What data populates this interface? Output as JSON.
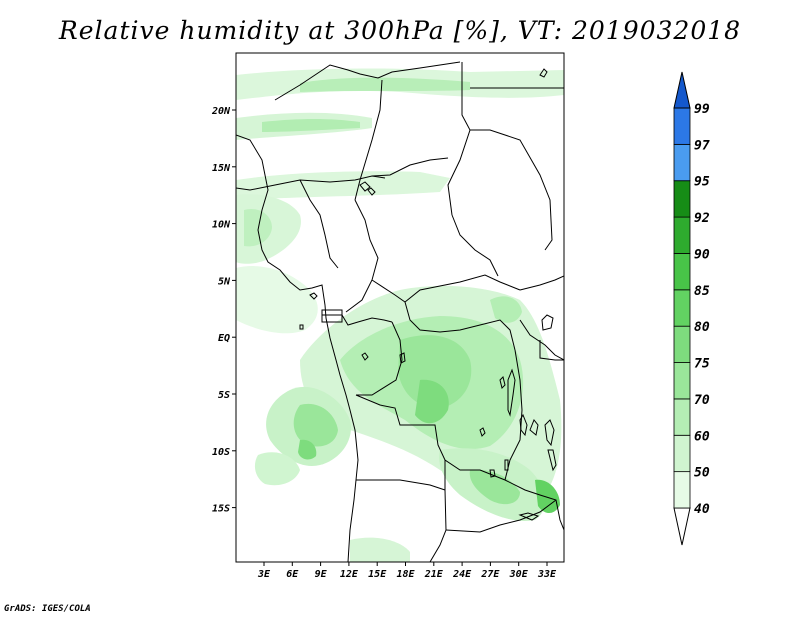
{
  "title": "Relative humidity at 300hPa [%], VT: 2019032018",
  "credit": "GrADS: IGES/COLA",
  "axes": {
    "lon_ticks": [
      "3E",
      "6E",
      "9E",
      "12E",
      "15E",
      "18E",
      "21E",
      "24E",
      "27E",
      "30E",
      "33E"
    ],
    "lat_ticks": [
      "20N",
      "15N",
      "10N",
      "5N",
      "EQ",
      "5S",
      "10S",
      "15S"
    ]
  },
  "colorbar": {
    "labels": [
      "40",
      "50",
      "60",
      "70",
      "75",
      "80",
      "85",
      "90",
      "92",
      "95",
      "97",
      "99"
    ],
    "colors": [
      "#ffffff",
      "#e6fbe6",
      "#d0f5d0",
      "#b4eeb4",
      "#9ae69a",
      "#7edc7e",
      "#62d262",
      "#48c448",
      "#2eab2e",
      "#168c16",
      "#4a9cf0",
      "#2c78e6",
      "#1458cc"
    ]
  },
  "chart_data": {
    "type": "heatmap",
    "title": "Relative humidity at 300hPa [%], VT: 2019032018",
    "lon_range": [
      0,
      35
    ],
    "lat_range": [
      -20,
      24
    ],
    "contour_levels": [
      40,
      50,
      60,
      70,
      75,
      80,
      85,
      90,
      92,
      95,
      97,
      99
    ]
  }
}
